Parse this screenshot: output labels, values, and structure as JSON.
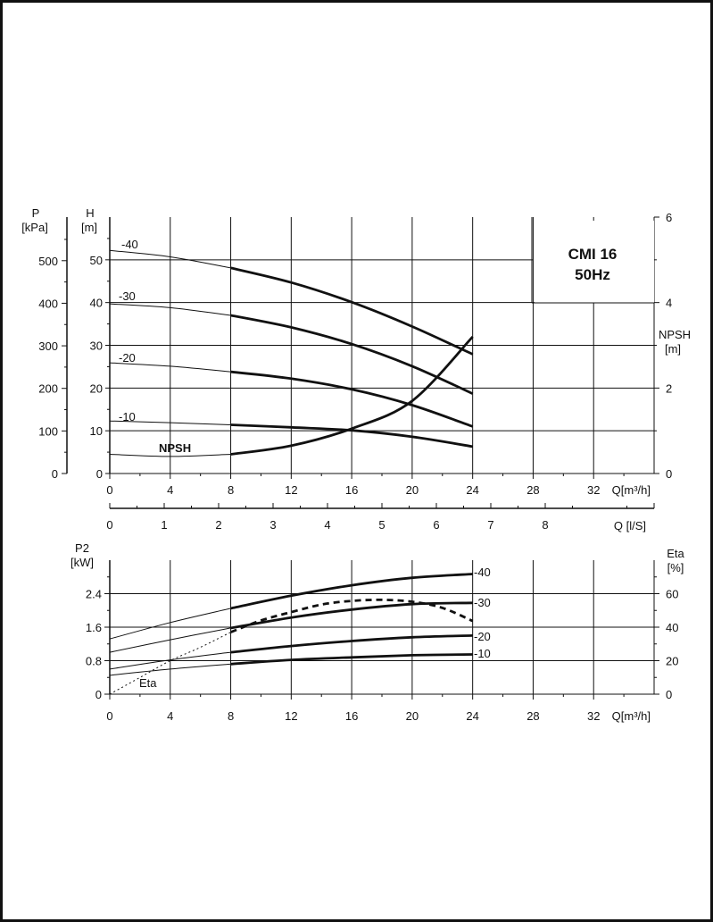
{
  "title": {
    "line1": "CMI 16",
    "line2": "50Hz"
  },
  "chart_data": [
    {
      "type": "line",
      "x_unit": "Q[m³/h]",
      "x_ticks": [
        "0",
        "4",
        "8",
        "12",
        "16",
        "20",
        "24",
        "28",
        "32"
      ],
      "xlim": [
        0,
        36
      ],
      "secondary_x_unit": "Q [l/S]",
      "secondary_x_ticks": [
        "0",
        "1",
        "2",
        "3",
        "4",
        "5",
        "6",
        "7",
        "8"
      ],
      "left_axis_p": {
        "label": "P",
        "unit": "[kPa]",
        "ticks": [
          "0",
          "100",
          "200",
          "300",
          "400",
          "500"
        ]
      },
      "left_axis_h": {
        "label": "H",
        "unit": "[m]",
        "ticks": [
          "0",
          "10",
          "20",
          "30",
          "40",
          "50"
        ],
        "ylim": [
          0,
          60
        ]
      },
      "right_axis": {
        "label": "NPSH",
        "unit": "[m]",
        "ticks": [
          "0",
          "2",
          "4",
          "6"
        ],
        "ylim": [
          0,
          6
        ]
      },
      "series": [
        {
          "name": "-40",
          "x": [
            0,
            4,
            8,
            12,
            16,
            20,
            24
          ],
          "y": [
            52.2,
            50.7,
            48.1,
            44.7,
            40.1,
            34.4,
            27.9
          ]
        },
        {
          "name": "-30",
          "x": [
            0,
            4,
            8,
            12,
            16,
            20,
            24
          ],
          "y": [
            39.7,
            38.8,
            37.0,
            34.2,
            30.3,
            25.1,
            18.7
          ]
        },
        {
          "name": "-20",
          "x": [
            0,
            4,
            8,
            12,
            16,
            20,
            24
          ],
          "y": [
            25.9,
            25.1,
            23.8,
            22.2,
            19.7,
            16.0,
            11.0
          ]
        },
        {
          "name": "-10",
          "x": [
            0,
            4,
            8,
            12,
            16,
            20,
            24
          ],
          "y": [
            12.3,
            11.9,
            11.4,
            10.8,
            10.1,
            8.6,
            6.3
          ]
        },
        {
          "name": "NPSH",
          "axis": "right",
          "x": [
            0,
            4,
            8,
            12,
            16,
            20,
            24
          ],
          "y": [
            0.45,
            0.4,
            0.45,
            0.65,
            1.05,
            1.7,
            3.2
          ]
        }
      ]
    },
    {
      "type": "line",
      "x_unit": "Q[m³/h]",
      "x_ticks": [
        "0",
        "4",
        "8",
        "12",
        "16",
        "20",
        "24",
        "28",
        "32"
      ],
      "xlim": [
        0,
        36
      ],
      "left_axis": {
        "label": "P2",
        "unit": "[kW]",
        "ticks": [
          "0",
          "0.8",
          "1.6",
          "2.4"
        ],
        "ylim": [
          0,
          3.2
        ]
      },
      "right_axis": {
        "label": "Eta",
        "unit": "[%]",
        "ticks": [
          "0",
          "20",
          "40",
          "60"
        ],
        "ylim": [
          0,
          80
        ]
      },
      "series": [
        {
          "name": "-40",
          "x": [
            0,
            4,
            8,
            12,
            16,
            20,
            24
          ],
          "y": [
            1.32,
            1.71,
            2.05,
            2.35,
            2.6,
            2.78,
            2.87
          ]
        },
        {
          "name": "-30",
          "x": [
            0,
            4,
            8,
            12,
            16,
            20,
            24
          ],
          "y": [
            1.0,
            1.3,
            1.58,
            1.83,
            2.02,
            2.15,
            2.18
          ]
        },
        {
          "name": "-20",
          "x": [
            0,
            4,
            8,
            12,
            16,
            20,
            24
          ],
          "y": [
            0.6,
            0.82,
            1.0,
            1.15,
            1.27,
            1.36,
            1.4
          ]
        },
        {
          "name": "-10",
          "x": [
            0,
            4,
            8,
            12,
            16,
            20,
            24
          ],
          "y": [
            0.45,
            0.6,
            0.72,
            0.82,
            0.88,
            0.93,
            0.95
          ]
        },
        {
          "name": "Eta",
          "axis": "right",
          "x": [
            0,
            2,
            4,
            6,
            8,
            10,
            12,
            14,
            16,
            18,
            20,
            22,
            24
          ],
          "y": [
            0,
            10,
            20,
            28,
            37,
            44,
            49,
            53.5,
            55.7,
            56.3,
            55.2,
            51.5,
            43.7
          ]
        }
      ]
    }
  ]
}
